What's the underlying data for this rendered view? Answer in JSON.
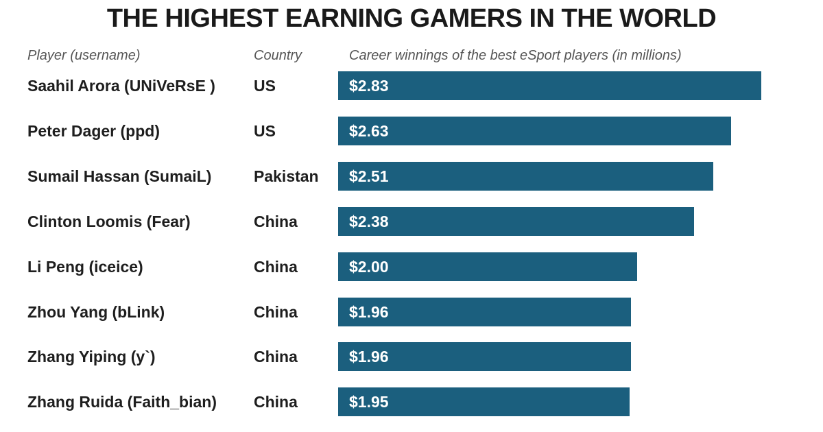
{
  "title": "THE HIGHEST EARNING GAMERS IN THE WORLD",
  "headers": {
    "player": "Player (username)",
    "country": "Country",
    "value": "Career winnings of the best eSport players (in millions)"
  },
  "colors": {
    "bar": "#1b5f7e",
    "bar_label": "#ffffff",
    "text": "#1e1e1e",
    "header_text": "#555555"
  },
  "chart_data": {
    "type": "bar",
    "orientation": "horizontal",
    "title": "THE HIGHEST EARNING GAMERS IN THE WORLD",
    "value_label": "Career winnings of the best eSport players (in millions)",
    "xlim": [
      0,
      2.83
    ],
    "grid": false,
    "rows": [
      {
        "player": "Saahil Arora (UNiVeRsE )",
        "country": "US",
        "value": 2.83,
        "label": "$2.83"
      },
      {
        "player": "Peter Dager (ppd)",
        "country": "US",
        "value": 2.63,
        "label": "$2.63"
      },
      {
        "player": "Sumail Hassan (SumaiL)",
        "country": "Pakistan",
        "value": 2.51,
        "label": "$2.51"
      },
      {
        "player": "Clinton Loomis (Fear)",
        "country": "China",
        "value": 2.38,
        "label": "$2.38"
      },
      {
        "player": "Li Peng (iceice)",
        "country": "China",
        "value": 2.0,
        "label": "$2.00"
      },
      {
        "player": "Zhou Yang (bLink)",
        "country": "China",
        "value": 1.96,
        "label": "$1.96"
      },
      {
        "player": "Zhang Yiping (y`)",
        "country": "China",
        "value": 1.96,
        "label": "$1.96"
      },
      {
        "player": "Zhang Ruida (Faith_bian)",
        "country": "China",
        "value": 1.95,
        "label": "$1.95"
      }
    ]
  }
}
